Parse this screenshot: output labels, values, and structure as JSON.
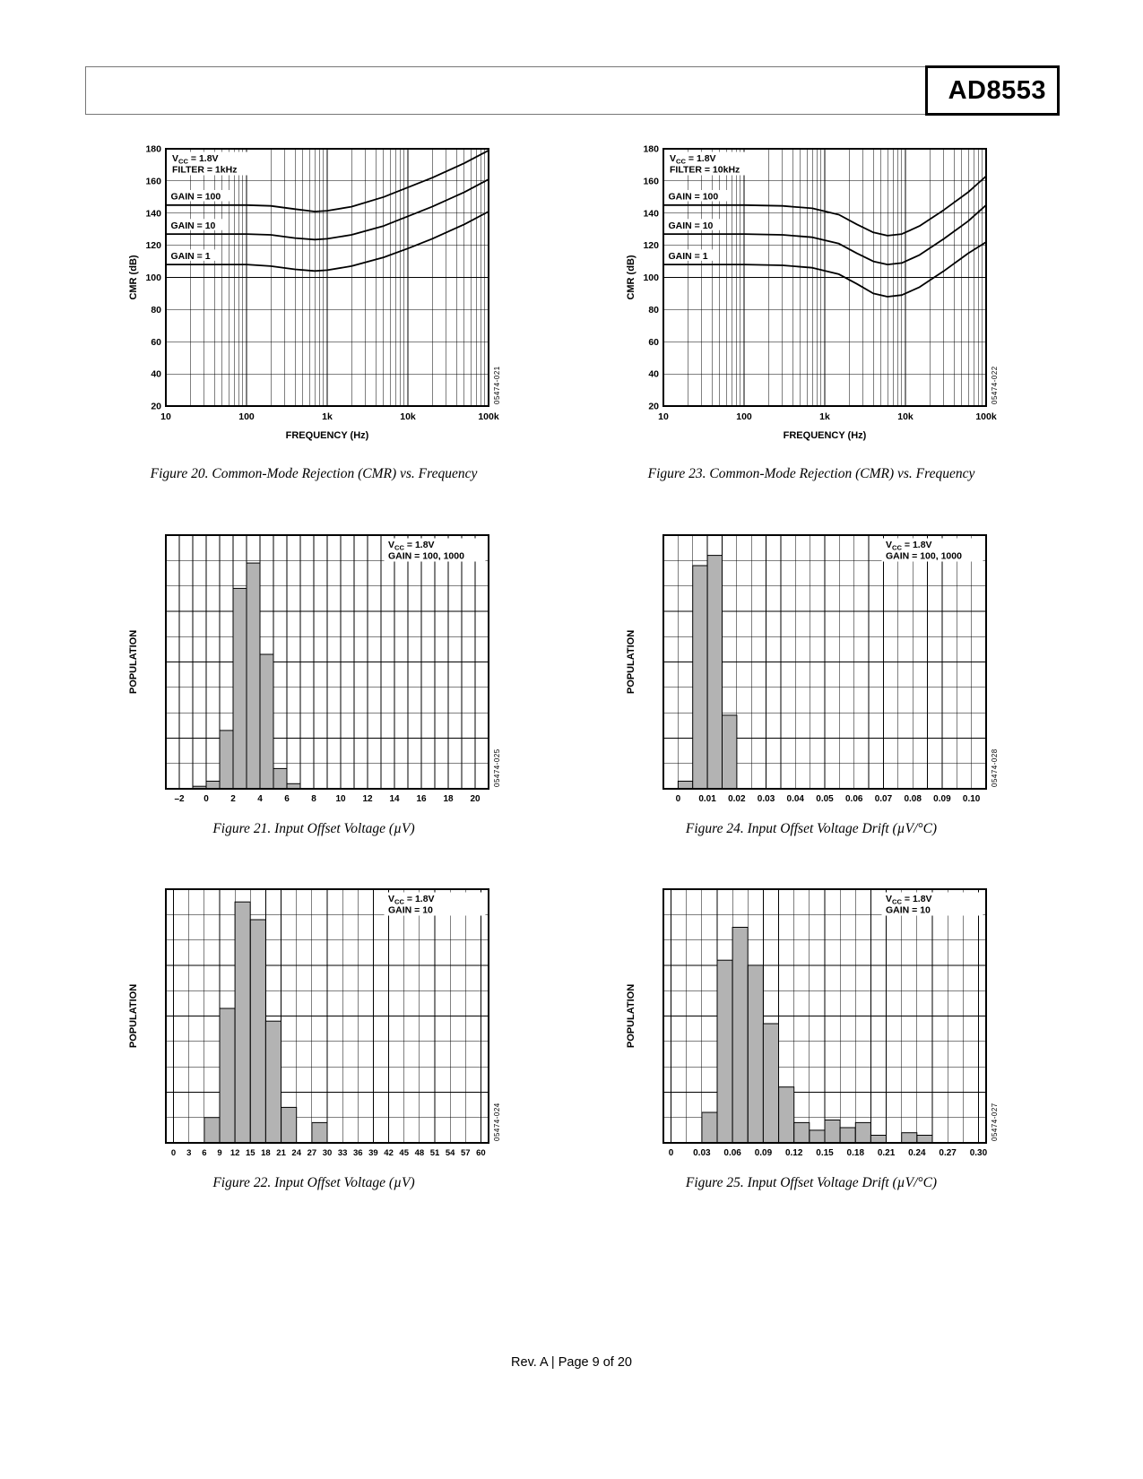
{
  "header": {
    "part_number": "AD8553"
  },
  "footer": {
    "text": "Rev. A | Page 9 of 20"
  },
  "chart_data": [
    {
      "type": "line",
      "xscale": "log",
      "caption": "Figure 20. Common-Mode Rejection (CMR) vs. Frequency",
      "watermark": "05474-021",
      "conditions": [
        "VCC = 1.8V",
        "FILTER = 1kHz"
      ],
      "xlabel": "FREQUENCY (Hz)",
      "ylabel": "CMR (dB)",
      "xlim": [
        10,
        100000
      ],
      "xticks": [
        10,
        100,
        1000,
        10000,
        100000
      ],
      "xtick_labels": [
        "10",
        "100",
        "1k",
        "10k",
        "100k"
      ],
      "ylim": [
        20,
        180
      ],
      "ytick_step": 20,
      "series": [
        {
          "name": "GAIN = 100",
          "label_y": 148.5,
          "points": [
            [
              10,
              145
            ],
            [
              30,
              145
            ],
            [
              100,
              145
            ],
            [
              200,
              144.5
            ],
            [
              400,
              142.5
            ],
            [
              700,
              141
            ],
            [
              1000,
              141.5
            ],
            [
              2000,
              144
            ],
            [
              5000,
              150
            ],
            [
              10000,
              156
            ],
            [
              20000,
              162
            ],
            [
              50000,
              171
            ],
            [
              100000,
              179
            ]
          ]
        },
        {
          "name": "GAIN = 10",
          "label_y": 130.5,
          "points": [
            [
              10,
              127
            ],
            [
              30,
              127
            ],
            [
              100,
              127
            ],
            [
              200,
              126.5
            ],
            [
              400,
              124.5
            ],
            [
              700,
              123.5
            ],
            [
              1000,
              124
            ],
            [
              2000,
              126.5
            ],
            [
              5000,
              132
            ],
            [
              10000,
              138
            ],
            [
              20000,
              144
            ],
            [
              50000,
              153
            ],
            [
              100000,
              161
            ]
          ]
        },
        {
          "name": "GAIN = 1",
          "label_y": 111.5,
          "points": [
            [
              10,
              108
            ],
            [
              30,
              108
            ],
            [
              100,
              108
            ],
            [
              200,
              107
            ],
            [
              400,
              105
            ],
            [
              700,
              104
            ],
            [
              1000,
              104.5
            ],
            [
              2000,
              107
            ],
            [
              5000,
              112.5
            ],
            [
              10000,
              118
            ],
            [
              20000,
              124
            ],
            [
              50000,
              133
            ],
            [
              100000,
              141
            ]
          ]
        }
      ]
    },
    {
      "type": "line",
      "xscale": "log",
      "caption": "Figure 23. Common-Mode Rejection (CMR) vs. Frequency",
      "watermark": "05474-022",
      "conditions": [
        "VCC = 1.8V",
        "FILTER = 10kHz"
      ],
      "xlabel": "FREQUENCY (Hz)",
      "ylabel": "CMR (dB)",
      "xlim": [
        10,
        100000
      ],
      "xticks": [
        10,
        100,
        1000,
        10000,
        100000
      ],
      "xtick_labels": [
        "10",
        "100",
        "1k",
        "10k",
        "100k"
      ],
      "ylim": [
        20,
        180
      ],
      "ytick_step": 20,
      "series": [
        {
          "name": "GAIN = 100",
          "label_y": 148.5,
          "points": [
            [
              10,
              145
            ],
            [
              100,
              145
            ],
            [
              300,
              144.5
            ],
            [
              700,
              143
            ],
            [
              1500,
              139
            ],
            [
              2500,
              133
            ],
            [
              4000,
              128
            ],
            [
              6000,
              126
            ],
            [
              9000,
              127
            ],
            [
              15000,
              132
            ],
            [
              30000,
              142
            ],
            [
              60000,
              153
            ],
            [
              100000,
              163
            ]
          ]
        },
        {
          "name": "GAIN = 10",
          "label_y": 130.5,
          "points": [
            [
              10,
              127
            ],
            [
              100,
              127
            ],
            [
              300,
              126.5
            ],
            [
              700,
              125
            ],
            [
              1500,
              121
            ],
            [
              2500,
              115
            ],
            [
              4000,
              110
            ],
            [
              6000,
              108
            ],
            [
              9000,
              109
            ],
            [
              15000,
              114
            ],
            [
              30000,
              124
            ],
            [
              60000,
              135
            ],
            [
              100000,
              145
            ]
          ]
        },
        {
          "name": "GAIN = 1",
          "label_y": 111.5,
          "points": [
            [
              10,
              108
            ],
            [
              100,
              108
            ],
            [
              300,
              107.5
            ],
            [
              700,
              106
            ],
            [
              1500,
              102
            ],
            [
              2500,
              96
            ],
            [
              4000,
              90
            ],
            [
              6000,
              88
            ],
            [
              9000,
              89
            ],
            [
              15000,
              94
            ],
            [
              30000,
              104
            ],
            [
              60000,
              115
            ],
            [
              100000,
              122
            ]
          ]
        }
      ]
    },
    {
      "type": "histogram",
      "caption": "Figure 21. Input Offset Voltage (µV)",
      "watermark": "05474-025",
      "conditions": [
        "VCC = 1.8V",
        "GAIN = 100, 1000"
      ],
      "ylabel": "POPULATION",
      "xlim": [
        -3,
        21
      ],
      "ylim": [
        0,
        100
      ],
      "xticks": [
        -2,
        0,
        2,
        4,
        6,
        8,
        10,
        12,
        14,
        16,
        18,
        20
      ],
      "xtick_labels": [
        "–2",
        "0",
        "2",
        "4",
        "6",
        "8",
        "10",
        "12",
        "14",
        "16",
        "18",
        "20"
      ],
      "grid_x_start": -2,
      "grid_x_step": 1,
      "y_divisions": 10,
      "bin_width": 1,
      "bin_start": [
        -1,
        0,
        1,
        2,
        3,
        4,
        5,
        6
      ],
      "height_pct": [
        1,
        3,
        23,
        79,
        89,
        53,
        8,
        2
      ]
    },
    {
      "type": "histogram",
      "caption": "Figure 24. Input Offset Voltage Drift (µV/°C)",
      "watermark": "05474-028",
      "conditions": [
        "VCC = 1.8V",
        "GAIN = 100, 1000"
      ],
      "ylabel": "POPULATION",
      "xlim": [
        -0.005,
        0.105
      ],
      "ylim": [
        0,
        100
      ],
      "xticks": [
        0,
        0.01,
        0.02,
        0.03,
        0.04,
        0.05,
        0.06,
        0.07,
        0.08,
        0.09,
        0.1
      ],
      "xtick_labels": [
        "0",
        "0.01",
        "0.02",
        "0.03",
        "0.04",
        "0.05",
        "0.06",
        "0.07",
        "0.08",
        "0.09",
        "0.10"
      ],
      "grid_x_start": 0,
      "grid_x_step": 0.005,
      "y_divisions": 10,
      "bin_width": 0.005,
      "bin_start": [
        0,
        0.005,
        0.01,
        0.015
      ],
      "height_pct": [
        3,
        88,
        92,
        29
      ]
    },
    {
      "type": "histogram",
      "caption": "Figure 22. Input Offset Voltage (µV)",
      "watermark": "05474-024",
      "conditions": [
        "VCC = 1.8V",
        "GAIN = 10"
      ],
      "ylabel": "POPULATION",
      "xlim": [
        -1.5,
        61.5
      ],
      "ylim": [
        0,
        100
      ],
      "xticks": [
        0,
        3,
        6,
        9,
        12,
        15,
        18,
        21,
        24,
        27,
        30,
        33,
        36,
        39,
        42,
        45,
        48,
        51,
        54,
        57,
        60
      ],
      "xtick_labels": [
        "0",
        "3",
        "6",
        "9",
        "12",
        "15",
        "18",
        "21",
        "24",
        "27",
        "30",
        "33",
        "36",
        "39",
        "42",
        "45",
        "48",
        "51",
        "54",
        "57",
        "60"
      ],
      "grid_x_start": 0,
      "grid_x_step": 3,
      "y_divisions": 10,
      "bin_width": 3,
      "bin_start": [
        6,
        9,
        12,
        15,
        18,
        21,
        27
      ],
      "height_pct": [
        10,
        53,
        95,
        88,
        48,
        14,
        8
      ]
    },
    {
      "type": "histogram",
      "caption": "Figure 25. Input Offset Voltage Drift (µV/°C)",
      "watermark": "05474-027",
      "conditions": [
        "VCC = 1.8V",
        "GAIN = 10"
      ],
      "ylabel": "POPULATION",
      "xlim": [
        -0.0075,
        0.3075
      ],
      "ylim": [
        0,
        100
      ],
      "xticks": [
        0,
        0.03,
        0.06,
        0.09,
        0.12,
        0.15,
        0.18,
        0.21,
        0.24,
        0.27,
        0.3
      ],
      "xtick_labels": [
        "0",
        "0.03",
        "0.06",
        "0.09",
        "0.12",
        "0.15",
        "0.18",
        "0.21",
        "0.24",
        "0.27",
        "0.30"
      ],
      "grid_x_start": 0,
      "grid_x_step": 0.015,
      "y_divisions": 10,
      "bin_width": 0.015,
      "bin_start": [
        0.03,
        0.045,
        0.06,
        0.075,
        0.09,
        0.105,
        0.12,
        0.135,
        0.15,
        0.165,
        0.18,
        0.195,
        0.225,
        0.24
      ],
      "height_pct": [
        12,
        72,
        85,
        70,
        47,
        22,
        8,
        5,
        9,
        6,
        8,
        3,
        4,
        3
      ]
    }
  ]
}
